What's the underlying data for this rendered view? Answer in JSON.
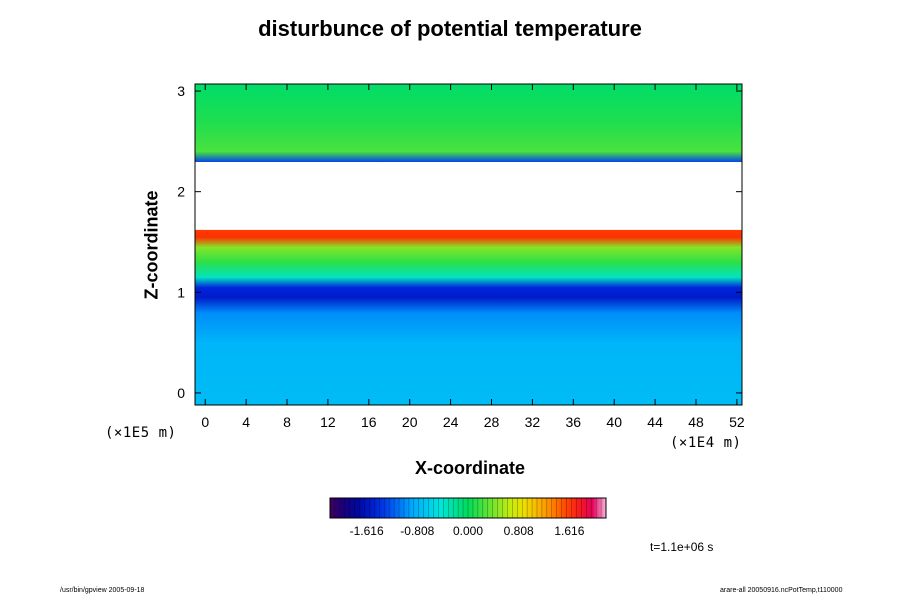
{
  "chart_data": {
    "type": "heatmap",
    "title": "disturbunce of potential temperature",
    "xlabel": "X-coordinate",
    "ylabel": "Z-coordinate",
    "x_unit": "(×1E4 m)",
    "y_unit": "(×1E5 m)",
    "xlim": [
      -1,
      52.5
    ],
    "ylim": [
      -0.12,
      3.07
    ],
    "x_ticks": [
      0,
      4,
      8,
      12,
      16,
      20,
      24,
      28,
      32,
      36,
      40,
      44,
      48,
      52
    ],
    "y_ticks": [
      0,
      1,
      2,
      3
    ],
    "colorbar": {
      "min": -2.2,
      "max": 2.2,
      "tick_labels": [
        "-1.616",
        "-0.808",
        "0.000",
        "0.808",
        "1.616"
      ],
      "tick_values": [
        -1.616,
        -0.808,
        0.0,
        0.808,
        1.616
      ]
    },
    "vertical_profile": [
      {
        "z": -0.12,
        "value": -0.75
      },
      {
        "z": 0.5,
        "value": -0.8
      },
      {
        "z": 0.8,
        "value": -1.0
      },
      {
        "z": 0.95,
        "value": -1.55
      },
      {
        "z": 1.05,
        "value": -1.45
      },
      {
        "z": 1.15,
        "value": -0.35
      },
      {
        "z": 1.3,
        "value": 0.15
      },
      {
        "z": 1.45,
        "value": 0.45
      },
      {
        "z": 1.55,
        "value": 1.65
      },
      {
        "z": 1.62,
        "value": 1.6
      },
      {
        "z": 1.68,
        "value": null
      },
      {
        "z": 2.25,
        "value": null
      },
      {
        "z": 2.3,
        "value": -1.3
      },
      {
        "z": 2.4,
        "value": 0.25
      },
      {
        "z": 2.7,
        "value": 0.1
      },
      {
        "z": 3.07,
        "value": -0.05
      }
    ],
    "time_label": "t=1.1e+06 s"
  },
  "footer": {
    "left": "/usr/bin/gpview 2005-09-18",
    "right": "arare-all 20050916.ncPotTemp,t110000"
  }
}
